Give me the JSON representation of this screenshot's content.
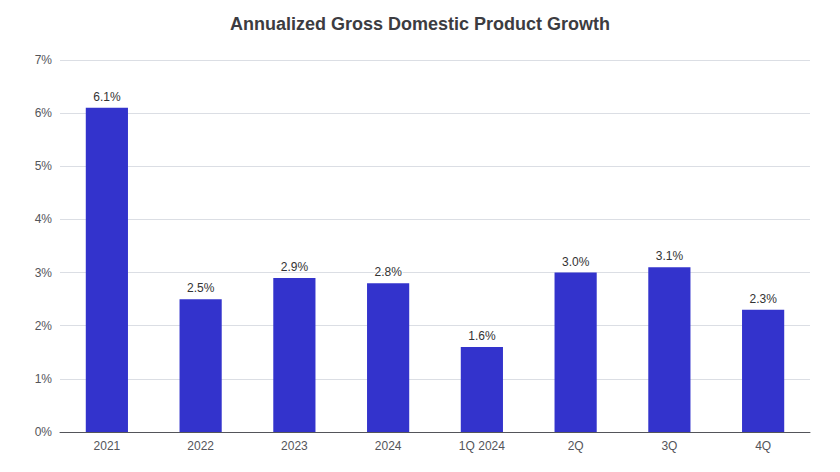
{
  "chart_data": {
    "type": "bar",
    "title": "Annualized Gross Domestic Product Growth",
    "categories": [
      "2021",
      "2022",
      "2023",
      "2024",
      "1Q 2024",
      "2Q",
      "3Q",
      "4Q"
    ],
    "values": [
      6.1,
      2.5,
      2.9,
      2.8,
      1.6,
      3.0,
      3.1,
      2.3
    ],
    "value_labels": [
      "6.1%",
      "2.5%",
      "2.9%",
      "2.8%",
      "1.6%",
      "3.0%",
      "3.1%",
      "2.3%"
    ],
    "data_labels": true,
    "color": "#3333cc",
    "ylim": [
      0,
      7
    ],
    "yticks": [
      {
        "value": 0,
        "label": "0%"
      },
      {
        "value": 1,
        "label": "1%"
      },
      {
        "value": 2,
        "label": "2%"
      },
      {
        "value": 3,
        "label": "3%"
      },
      {
        "value": 4,
        "label": "4%"
      },
      {
        "value": 5,
        "label": "5%"
      },
      {
        "value": 6,
        "label": "6%"
      },
      {
        "value": 7,
        "label": "7%"
      }
    ],
    "grid": true
  }
}
